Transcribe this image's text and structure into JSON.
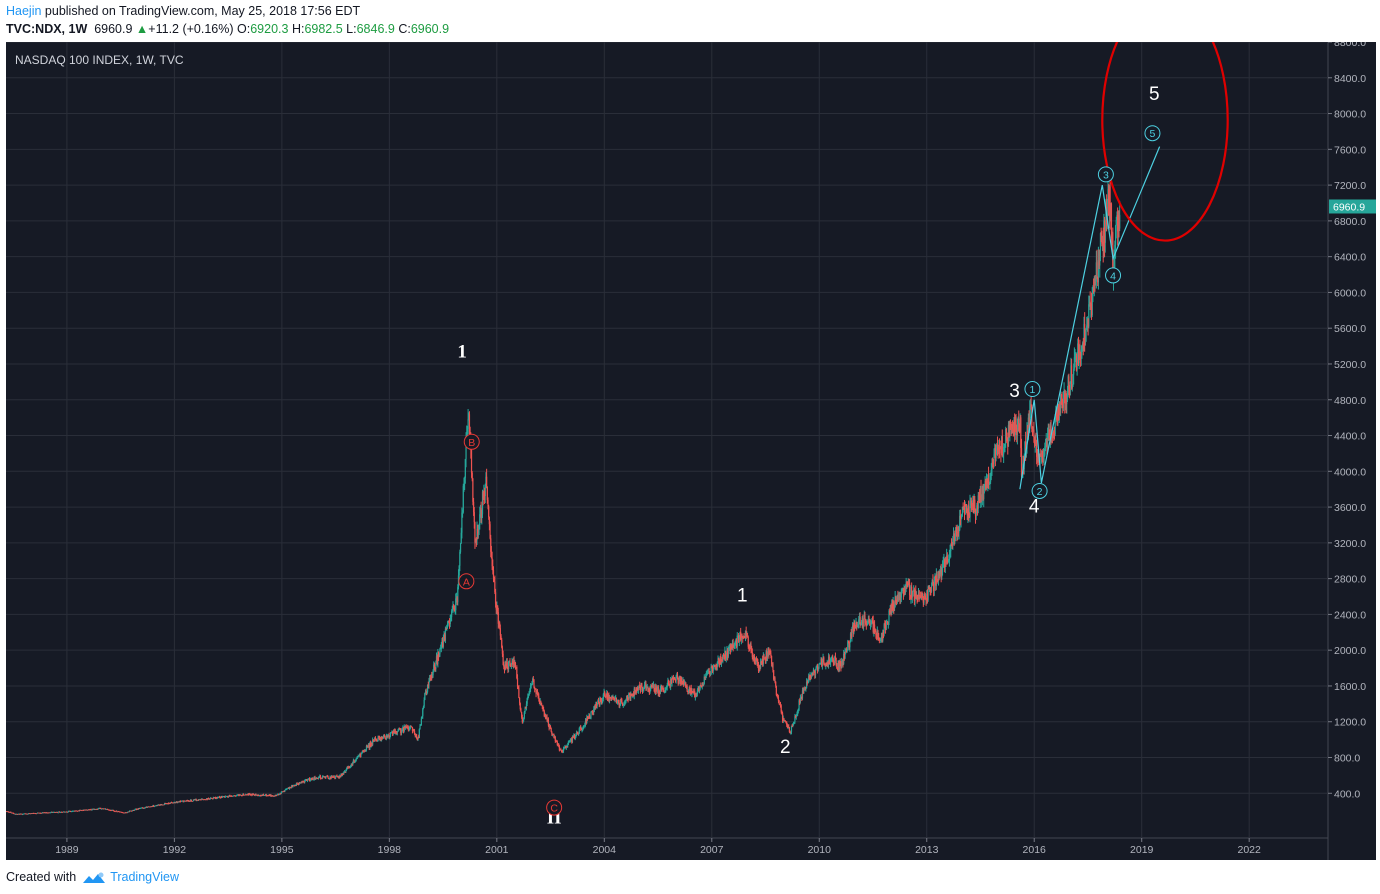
{
  "header": {
    "author": "Haejin",
    "published": " published on TradingView.com, May 25, 2018 17:56 EDT",
    "symbol": "TVC:NDX, 1W",
    "last": "6960.9",
    "change": "+11.2 (+0.16%)",
    "o_label": "O:",
    "o_value": "6920.3",
    "h_label": "H:",
    "h_value": "6982.5",
    "l_label": "L:",
    "l_value": "6846.9",
    "c_label": "C:",
    "c_value": "6960.9"
  },
  "footer": {
    "created": "Created with",
    "brand": "TradingView"
  },
  "colors": {
    "background": "#161a25",
    "grid": "#2a2e39",
    "up": "#26a69a",
    "down": "#ef5350",
    "wave_cyan": "#4dd0e1",
    "circle_red": "#e00000",
    "abc_red": "#e53935",
    "price_tag": "#26a69a"
  },
  "chart_data": {
    "type": "candlestick",
    "title": "NASDAQ 100 INDEX, 1W, TVC",
    "x_ticks": [
      "1989",
      "1992",
      "1995",
      "1998",
      "2001",
      "2004",
      "2007",
      "2010",
      "2013",
      "2016",
      "2019",
      "2022"
    ],
    "y_ticks": [
      "400.0",
      "800.0",
      "1200.0",
      "1600.0",
      "2000.0",
      "2400.0",
      "2800.0",
      "3200.0",
      "3600.0",
      "4000.0",
      "4400.0",
      "4800.0",
      "5200.0",
      "5600.0",
      "6000.0",
      "6400.0",
      "6800.0",
      "7200.0",
      "7600.0",
      "8000.0",
      "8400.0",
      "8800.0"
    ],
    "ylim": [
      -100,
      8800
    ],
    "xlim": [
      1987.3,
      2024.2
    ],
    "last_price_label": "6960.9",
    "last_price": 6960.9,
    "series": [
      {
        "values": [
          [
            1987.3,
            200
          ],
          [
            1987.6,
            165
          ],
          [
            1988.0,
            175
          ],
          [
            1989.0,
            195
          ],
          [
            1990.0,
            230
          ],
          [
            1990.6,
            180
          ],
          [
            1991.0,
            230
          ],
          [
            1992.0,
            300
          ],
          [
            1993.0,
            340
          ],
          [
            1994.0,
            390
          ],
          [
            1994.8,
            370
          ],
          [
            1995.5,
            520
          ],
          [
            1996.0,
            580
          ],
          [
            1996.6,
            580
          ],
          [
            1997.0,
            750
          ],
          [
            1997.6,
            1000
          ],
          [
            1998.0,
            1050
          ],
          [
            1998.6,
            1150
          ],
          [
            1998.8,
            1000
          ],
          [
            1999.0,
            1500
          ],
          [
            1999.5,
            2100
          ],
          [
            1999.9,
            2600
          ],
          [
            2000.2,
            4700
          ],
          [
            2000.4,
            3200
          ],
          [
            2000.7,
            3900
          ],
          [
            2000.9,
            2800
          ],
          [
            2001.2,
            1800
          ],
          [
            2001.5,
            1900
          ],
          [
            2001.7,
            1200
          ],
          [
            2002.0,
            1650
          ],
          [
            2002.5,
            1100
          ],
          [
            2002.8,
            850
          ],
          [
            2003.3,
            1100
          ],
          [
            2004.0,
            1500
          ],
          [
            2004.5,
            1400
          ],
          [
            2005.0,
            1600
          ],
          [
            2005.6,
            1550
          ],
          [
            2006.0,
            1700
          ],
          [
            2006.5,
            1500
          ],
          [
            2007.0,
            1800
          ],
          [
            2007.5,
            2000
          ],
          [
            2007.9,
            2200
          ],
          [
            2008.3,
            1800
          ],
          [
            2008.6,
            2000
          ],
          [
            2008.8,
            1550
          ],
          [
            2009.0,
            1200
          ],
          [
            2009.2,
            1100
          ],
          [
            2009.6,
            1600
          ],
          [
            2010.0,
            1850
          ],
          [
            2010.4,
            1900
          ],
          [
            2010.6,
            1800
          ],
          [
            2011.0,
            2300
          ],
          [
            2011.4,
            2350
          ],
          [
            2011.7,
            2100
          ],
          [
            2012.0,
            2450
          ],
          [
            2012.4,
            2700
          ],
          [
            2012.9,
            2550
          ],
          [
            2013.5,
            2950
          ],
          [
            2014.0,
            3550
          ],
          [
            2014.4,
            3600
          ],
          [
            2015.0,
            4250
          ],
          [
            2015.6,
            4550
          ],
          [
            2015.65,
            3950
          ],
          [
            2015.9,
            4700
          ],
          [
            2016.1,
            4100
          ],
          [
            2016.5,
            4450
          ],
          [
            2016.8,
            4800
          ],
          [
            2017.0,
            5000
          ],
          [
            2017.5,
            5700
          ],
          [
            2018.0,
            6800
          ],
          [
            2018.1,
            7100
          ],
          [
            2018.2,
            6300
          ],
          [
            2018.3,
            6700
          ],
          [
            2018.4,
            6960.9
          ]
        ]
      }
    ],
    "annotations": {
      "white_counts": [
        {
          "label": "1",
          "x": 2000.03,
          "y": 5270
        },
        {
          "label": "II",
          "x": 2002.6,
          "y": 60
        },
        {
          "label": "1",
          "x": 2007.85,
          "y": 2545
        },
        {
          "label": "2",
          "x": 2009.05,
          "y": 850
        },
        {
          "label": "3",
          "x": 2015.45,
          "y": 4830
        },
        {
          "label": "4",
          "x": 2016.0,
          "y": 3540
        },
        {
          "label": "5",
          "x": 2019.35,
          "y": 8150
        }
      ],
      "red_abc": [
        {
          "label": "A",
          "x": 2000.15,
          "y": 2770
        },
        {
          "label": "B",
          "x": 2000.3,
          "y": 4330
        },
        {
          "label": "C",
          "x": 2002.6,
          "y": 240
        }
      ],
      "cyan_circled": [
        {
          "label": "1",
          "x": 2015.95,
          "y": 4920
        },
        {
          "label": "2",
          "x": 2016.15,
          "y": 3780
        },
        {
          "label": "3",
          "x": 2018.0,
          "y": 7320
        },
        {
          "label": "4",
          "x": 2018.2,
          "y": 6190
        },
        {
          "label": "5",
          "x": 2019.3,
          "y": 7780
        }
      ],
      "cyan_path": [
        [
          2015.6,
          3800
        ],
        [
          2016.0,
          4800
        ],
        [
          2016.2,
          3870
        ],
        [
          2017.9,
          7200
        ],
        [
          2018.2,
          6380
        ],
        [
          2019.5,
          7630
        ]
      ],
      "target_circle": {
        "x": 2019.65,
        "y": 7930,
        "r_years": 1.75,
        "r_units": 1350
      }
    }
  }
}
